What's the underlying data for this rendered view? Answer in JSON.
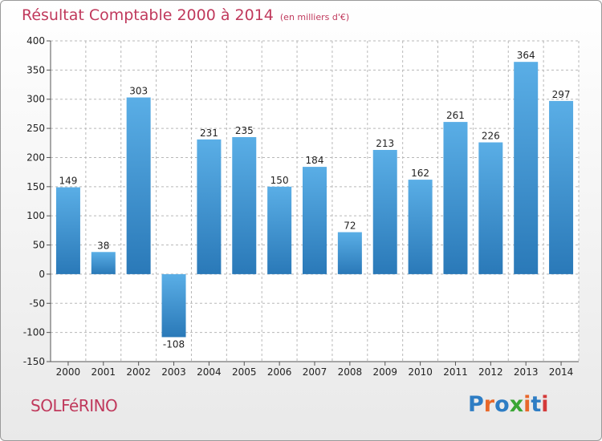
{
  "header": {
    "title": "Résultat Comptable 2000 à 2014",
    "subtitle": "(en milliers d'€)"
  },
  "footer": {
    "commune": "SOLFéRINO",
    "logo": "Proxiti"
  },
  "colors": {
    "title": "#c0395c",
    "bar_top": "#5aaee6",
    "bar_bottom": "#2a79b8",
    "grid": "#b8b8b8"
  },
  "chart_data": {
    "type": "bar",
    "title": "Résultat Comptable 2000 à 2014",
    "subtitle": "(en milliers d'€)",
    "xlabel": "",
    "ylabel": "",
    "categories": [
      "2000",
      "2001",
      "2002",
      "2003",
      "2004",
      "2005",
      "2006",
      "2007",
      "2008",
      "2009",
      "2010",
      "2011",
      "2012",
      "2013",
      "2014"
    ],
    "values": [
      149,
      38,
      303,
      -108,
      231,
      235,
      150,
      184,
      72,
      213,
      162,
      261,
      226,
      364,
      297
    ],
    "value_labels": [
      "149",
      "38",
      "303",
      "-108",
      "231",
      "235",
      "150",
      "184",
      "72",
      "213",
      "162",
      "261",
      "226",
      "364",
      "297"
    ],
    "ylim": [
      -150,
      400
    ],
    "yticks": [
      -150,
      -100,
      -50,
      0,
      50,
      100,
      150,
      200,
      250,
      300,
      350,
      400
    ],
    "ytick_labels": [
      "-150",
      "-100",
      "-50",
      "0",
      "50",
      "100",
      "150",
      "200",
      "250",
      "300",
      "350",
      "400"
    ],
    "grid": true
  }
}
